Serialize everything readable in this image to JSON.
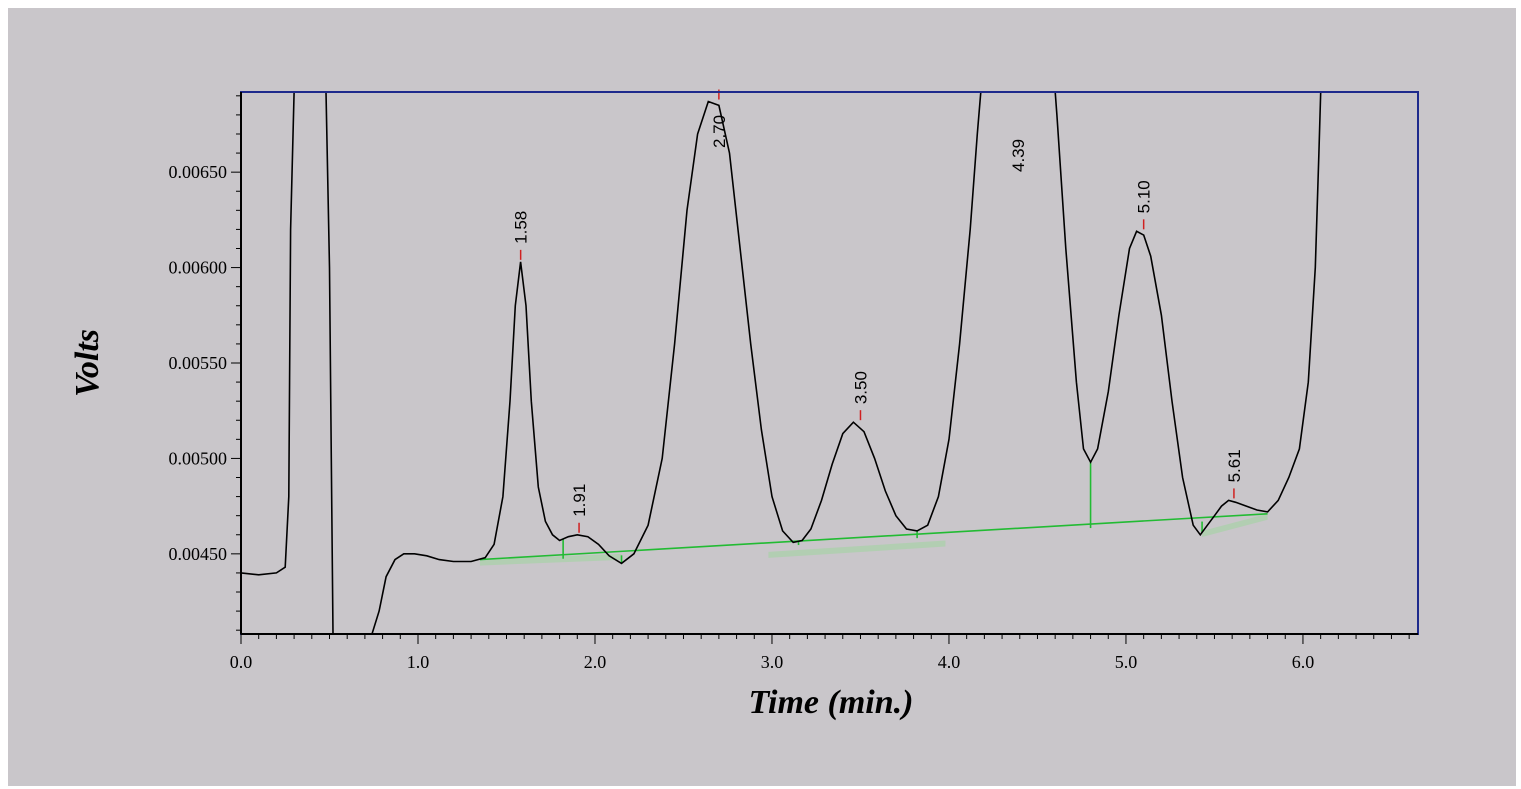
{
  "chart_data": {
    "type": "line",
    "xlabel": "Time (min.)",
    "ylabel": "Volts",
    "xlim": [
      0.0,
      6.65
    ],
    "ylim": [
      0.00408,
      0.00692
    ],
    "x_ticks": [
      "0.0",
      "1.0",
      "2.0",
      "3.0",
      "4.0",
      "5.0",
      "6.0"
    ],
    "y_ticks": [
      "0.00450",
      "0.00500",
      "0.00550",
      "0.00600",
      "0.00650"
    ],
    "grid": false,
    "colors": {
      "signal": "#000000",
      "baseline": "#22bb33",
      "peak_marker": "#d02020",
      "axis": "#1e2a8c",
      "plot_bg": "#c9c6ca",
      "frame_bg": "#c9c6ca"
    },
    "series": [
      {
        "x": [
          0.0,
          0.1,
          0.2,
          0.25,
          0.27,
          0.28,
          0.3,
          0.48,
          0.5,
          0.51,
          0.52,
          0.74,
          0.78,
          0.82,
          0.87,
          0.92,
          0.98,
          1.05,
          1.12,
          1.2,
          1.3,
          1.38,
          1.43,
          1.48,
          1.52,
          1.55,
          1.58,
          1.61,
          1.64,
          1.68,
          1.72,
          1.76,
          1.8,
          1.85,
          1.9,
          1.96,
          2.02,
          2.08,
          2.15,
          2.22,
          2.3,
          2.38,
          2.45,
          2.52,
          2.58,
          2.64,
          2.7,
          2.76,
          2.82,
          2.88,
          2.94,
          3.0,
          3.06,
          3.12,
          3.17,
          3.22,
          3.28,
          3.34,
          3.4,
          3.46,
          3.52,
          3.58,
          3.64,
          3.7,
          3.76,
          3.82,
          3.88,
          3.94,
          4.0,
          4.06,
          4.12,
          4.16,
          4.18,
          4.19,
          4.6,
          4.61,
          4.66,
          4.72,
          4.76,
          4.8,
          4.84,
          4.9,
          4.96,
          5.02,
          5.06,
          5.1,
          5.14,
          5.2,
          5.26,
          5.32,
          5.38,
          5.42,
          5.46,
          5.5,
          5.54,
          5.58,
          5.62,
          5.68,
          5.74,
          5.8,
          5.86,
          5.92,
          5.98,
          6.03,
          6.07,
          6.09,
          6.1
        ],
        "y": [
          0.0044,
          0.00439,
          0.0044,
          0.00443,
          0.0048,
          0.0062,
          0.00692,
          0.00692,
          0.006,
          0.005,
          0.00408,
          0.00408,
          0.0042,
          0.00438,
          0.00447,
          0.0045,
          0.0045,
          0.00449,
          0.00447,
          0.00446,
          0.00446,
          0.00448,
          0.00455,
          0.0048,
          0.0053,
          0.0058,
          0.00603,
          0.0058,
          0.0053,
          0.00485,
          0.00467,
          0.0046,
          0.00457,
          0.00459,
          0.0046,
          0.00459,
          0.00455,
          0.00449,
          0.00445,
          0.0045,
          0.00465,
          0.005,
          0.0056,
          0.0063,
          0.0067,
          0.00687,
          0.00685,
          0.0066,
          0.0061,
          0.0056,
          0.00515,
          0.0048,
          0.00462,
          0.00456,
          0.00457,
          0.00463,
          0.00478,
          0.00497,
          0.00513,
          0.00519,
          0.00514,
          0.005,
          0.00483,
          0.0047,
          0.00463,
          0.00462,
          0.00465,
          0.0048,
          0.0051,
          0.0056,
          0.0062,
          0.0067,
          0.00692,
          0.00692,
          0.00692,
          0.0068,
          0.0061,
          0.0054,
          0.00505,
          0.00498,
          0.00505,
          0.00535,
          0.00575,
          0.0061,
          0.00619,
          0.00617,
          0.00606,
          0.00575,
          0.0053,
          0.0049,
          0.00465,
          0.0046,
          0.00465,
          0.0047,
          0.00475,
          0.00478,
          0.00477,
          0.00475,
          0.00473,
          0.00472,
          0.00478,
          0.0049,
          0.00505,
          0.0054,
          0.006,
          0.0066,
          0.00692
        ]
      }
    ],
    "baseline": {
      "x": [
        1.35,
        5.8
      ],
      "y": [
        0.00447,
        0.00471
      ],
      "drop_lines": [
        1.82,
        2.15,
        3.15,
        3.82,
        4.8,
        5.43
      ],
      "shaded": [
        {
          "x": [
            1.35,
            2.15
          ],
          "y": [
            0.00447,
            0.0045
          ]
        },
        {
          "x": [
            2.98,
            3.98
          ],
          "y": [
            0.00451,
            0.00457
          ]
        },
        {
          "x": [
            5.43,
            5.8
          ],
          "y": [
            0.00462,
            0.00471
          ]
        }
      ]
    },
    "peak_labels": [
      {
        "x": 1.58,
        "y": 0.00603,
        "text": "1.58"
      },
      {
        "x": 1.91,
        "y": 0.0046,
        "text": "1.91"
      },
      {
        "x": 2.7,
        "y": 0.00687,
        "text": "2.70"
      },
      {
        "x": 3.5,
        "y": 0.00519,
        "text": "3.50"
      },
      {
        "x": 4.39,
        "y": 0.00692,
        "text": "4.39"
      },
      {
        "x": 5.1,
        "y": 0.00619,
        "text": "5.10"
      },
      {
        "x": 5.61,
        "y": 0.00478,
        "text": "5.61"
      }
    ]
  }
}
